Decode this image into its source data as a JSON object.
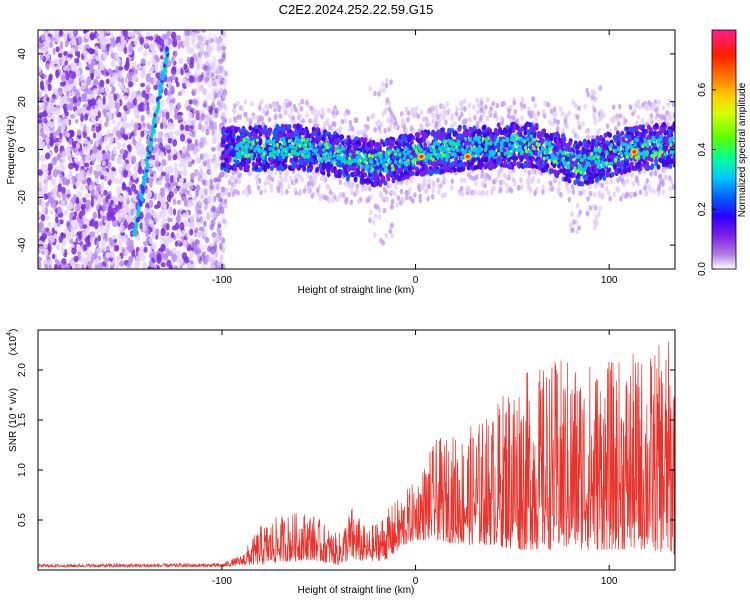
{
  "title": "C2E2.2024.252.22.59.G15",
  "colors": {
    "signal_trace": "#e8332c",
    "frame": "#000000"
  },
  "chart_data": [
    {
      "type": "heatmap",
      "name": "spectrogram",
      "xlabel": "Height of straight line (km)",
      "ylabel": "Frequency (Hz)",
      "xlim": [
        -195,
        134
      ],
      "ylim": [
        -50,
        50
      ],
      "xticks": [
        -100,
        0,
        100
      ],
      "xtick_labels": [
        "-100",
        "0",
        "100"
      ],
      "yticks": [
        -40,
        -20,
        0,
        20,
        40
      ],
      "ytick_labels": [
        "-40",
        "-20",
        "0",
        "20",
        "40"
      ],
      "colorbar": {
        "label": "Normalized spectral amplitude",
        "range": [
          0,
          0.8
        ],
        "ticks": [
          0.0,
          0.2,
          0.4,
          0.6
        ],
        "tick_labels": [
          "0.0",
          "0.2",
          "0.4",
          "0.6"
        ],
        "colormap": [
          "#ffffff",
          "#8a2be2",
          "#0000ff",
          "#00bfff",
          "#00ff7f",
          "#7fff00",
          "#ffff00",
          "#ff8c00",
          "#ff0000",
          "#ff1493"
        ]
      },
      "features": {
        "noise_region_km": [
          -195,
          -98
        ],
        "oblique_track": {
          "from": [
            -145,
            -35
          ],
          "to": [
            -128,
            42
          ]
        },
        "central_band_center_hz": [
          [
            -100,
            0
          ],
          [
            -60,
            1
          ],
          [
            -20,
            -6
          ],
          [
            0,
            -2
          ],
          [
            30,
            1
          ],
          [
            60,
            2
          ],
          [
            85,
            -6
          ],
          [
            110,
            0
          ],
          [
            134,
            2
          ]
        ],
        "central_band_halfwidth_hz": 9,
        "peak_points": [
          [
            3,
            -3
          ],
          [
            27,
            -3
          ],
          [
            113,
            -1
          ]
        ]
      }
    },
    {
      "type": "line",
      "name": "snr",
      "xlabel": "Height of straight line (km)",
      "ylabel": "SNR (10 * v/v)",
      "multiplier": "(x10",
      "multiplier_exp": "4",
      "multiplier_close": ")",
      "xlim": [
        -195,
        134
      ],
      "ylim": [
        0,
        2.4
      ],
      "xticks": [
        -100,
        0,
        100
      ],
      "xtick_labels": [
        "-100",
        "0",
        "100"
      ],
      "yticks": [
        0.5,
        1.0,
        1.5,
        2.0
      ],
      "ytick_labels": [
        "0.5",
        "1.0",
        "1.5",
        "2.0"
      ],
      "envelope": [
        [
          -195,
          0.03,
          0.06
        ],
        [
          -100,
          0.03,
          0.07
        ],
        [
          -90,
          0.05,
          0.15
        ],
        [
          -80,
          0.05,
          0.45
        ],
        [
          -70,
          0.08,
          0.55
        ],
        [
          -55,
          0.1,
          0.6
        ],
        [
          -40,
          0.05,
          0.35
        ],
        [
          -33,
          0.1,
          0.65
        ],
        [
          -25,
          0.08,
          0.4
        ],
        [
          -15,
          0.1,
          0.6
        ],
        [
          -5,
          0.25,
          0.8
        ],
        [
          0,
          0.3,
          0.9
        ],
        [
          10,
          0.3,
          1.3
        ],
        [
          25,
          0.25,
          1.4
        ],
        [
          40,
          0.25,
          1.6
        ],
        [
          50,
          0.2,
          2.0
        ],
        [
          60,
          0.2,
          2.0
        ],
        [
          70,
          0.2,
          2.1
        ],
        [
          80,
          0.2,
          2.15
        ],
        [
          100,
          0.2,
          2.1
        ],
        [
          120,
          0.2,
          2.2
        ],
        [
          134,
          0.15,
          2.35
        ]
      ]
    }
  ]
}
